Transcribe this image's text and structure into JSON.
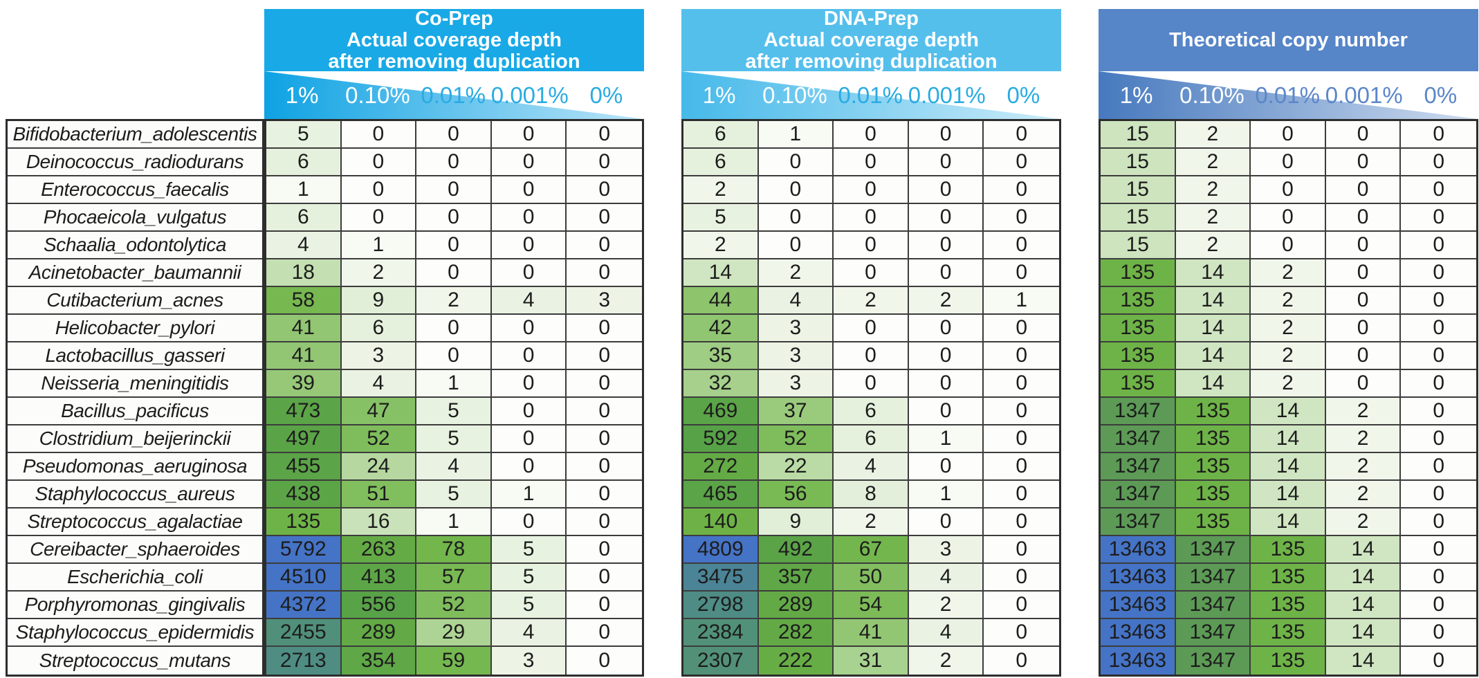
{
  "figure": {
    "description": "Coverage depth heatmap table comparing Co-Prep, DNA-Prep and theoretical copy number across serial dilutions"
  },
  "chart_data": {
    "type": "heatmap",
    "columns": [
      "1%",
      "0.10%",
      "0.01%",
      "0.001%",
      "0%"
    ],
    "panels": [
      {
        "values_key": "coprep",
        "title_lines": [
          "Co-Prep",
          "Actual coverage depth",
          "after removing duplication"
        ],
        "header_fill": "#19a9e6",
        "wedge_from": "#0ea2e3",
        "wedge_to": "#bce5f8",
        "pct_text_color": "#29abe2"
      },
      {
        "values_key": "dnaprep",
        "title_lines": [
          "DNA-Prep",
          "Actual coverage depth",
          "after removing duplication"
        ],
        "header_fill": "#55bfec",
        "wedge_from": "#45b9ea",
        "wedge_to": "#cdecf9",
        "pct_text_color": "#29abe2"
      },
      {
        "values_key": "theoretical",
        "title_lines": [
          "Theoretical copy number"
        ],
        "header_fill": "#5685c8",
        "wedge_from": "#4679be",
        "wedge_to": "#cfdcef",
        "pct_text_color": "#5b86c8"
      }
    ],
    "rows": [
      {
        "species": "Bifidobacterium_adolescentis",
        "coprep": [
          5,
          0,
          0,
          0,
          0
        ],
        "dnaprep": [
          6,
          1,
          0,
          0,
          0
        ],
        "theoretical": [
          15,
          2,
          0,
          0,
          0
        ]
      },
      {
        "species": "Deinococcus_radiodurans",
        "coprep": [
          6,
          0,
          0,
          0,
          0
        ],
        "dnaprep": [
          6,
          0,
          0,
          0,
          0
        ],
        "theoretical": [
          15,
          2,
          0,
          0,
          0
        ]
      },
      {
        "species": "Enterococcus_faecalis",
        "coprep": [
          1,
          0,
          0,
          0,
          0
        ],
        "dnaprep": [
          2,
          0,
          0,
          0,
          0
        ],
        "theoretical": [
          15,
          2,
          0,
          0,
          0
        ]
      },
      {
        "species": "Phocaeicola_vulgatus",
        "coprep": [
          6,
          0,
          0,
          0,
          0
        ],
        "dnaprep": [
          5,
          0,
          0,
          0,
          0
        ],
        "theoretical": [
          15,
          2,
          0,
          0,
          0
        ]
      },
      {
        "species": "Schaalia_odontolytica",
        "coprep": [
          4,
          1,
          0,
          0,
          0
        ],
        "dnaprep": [
          2,
          0,
          0,
          0,
          0
        ],
        "theoretical": [
          15,
          2,
          0,
          0,
          0
        ]
      },
      {
        "species": "Acinetobacter_baumannii",
        "coprep": [
          18,
          2,
          0,
          0,
          0
        ],
        "dnaprep": [
          14,
          2,
          0,
          0,
          0
        ],
        "theoretical": [
          135,
          14,
          2,
          0,
          0
        ]
      },
      {
        "species": "Cutibacterium_acnes",
        "coprep": [
          58,
          9,
          2,
          4,
          3
        ],
        "dnaprep": [
          44,
          4,
          2,
          2,
          1
        ],
        "theoretical": [
          135,
          14,
          2,
          0,
          0
        ]
      },
      {
        "species": "Helicobacter_pylori",
        "coprep": [
          41,
          6,
          0,
          0,
          0
        ],
        "dnaprep": [
          42,
          3,
          0,
          0,
          0
        ],
        "theoretical": [
          135,
          14,
          2,
          0,
          0
        ]
      },
      {
        "species": "Lactobacillus_gasseri",
        "coprep": [
          41,
          3,
          0,
          0,
          0
        ],
        "dnaprep": [
          35,
          3,
          0,
          0,
          0
        ],
        "theoretical": [
          135,
          14,
          2,
          0,
          0
        ]
      },
      {
        "species": "Neisseria_meningitidis",
        "coprep": [
          39,
          4,
          1,
          0,
          0
        ],
        "dnaprep": [
          32,
          3,
          0,
          0,
          0
        ],
        "theoretical": [
          135,
          14,
          2,
          0,
          0
        ]
      },
      {
        "species": "Bacillus_pacificus",
        "coprep": [
          473,
          47,
          5,
          0,
          0
        ],
        "dnaprep": [
          469,
          37,
          6,
          0,
          0
        ],
        "theoretical": [
          1347,
          135,
          14,
          2,
          0
        ]
      },
      {
        "species": "Clostridium_beijerinckii",
        "coprep": [
          497,
          52,
          5,
          0,
          0
        ],
        "dnaprep": [
          592,
          52,
          6,
          1,
          0
        ],
        "theoretical": [
          1347,
          135,
          14,
          2,
          0
        ]
      },
      {
        "species": "Pseudomonas_aeruginosa",
        "coprep": [
          455,
          24,
          4,
          0,
          0
        ],
        "dnaprep": [
          272,
          22,
          4,
          0,
          0
        ],
        "theoretical": [
          1347,
          135,
          14,
          2,
          0
        ]
      },
      {
        "species": "Staphylococcus_aureus",
        "coprep": [
          438,
          51,
          5,
          1,
          0
        ],
        "dnaprep": [
          465,
          56,
          8,
          1,
          0
        ],
        "theoretical": [
          1347,
          135,
          14,
          2,
          0
        ]
      },
      {
        "species": "Streptococcus_agalactiae",
        "coprep": [
          135,
          16,
          1,
          0,
          0
        ],
        "dnaprep": [
          140,
          9,
          2,
          0,
          0
        ],
        "theoretical": [
          1347,
          135,
          14,
          2,
          0
        ]
      },
      {
        "species": "Cereibacter_sphaeroides",
        "coprep": [
          5792,
          263,
          78,
          5,
          0
        ],
        "dnaprep": [
          4809,
          492,
          67,
          3,
          0
        ],
        "theoretical": [
          13463,
          1347,
          135,
          14,
          0
        ]
      },
      {
        "species": "Escherichia_coli",
        "coprep": [
          4510,
          413,
          57,
          5,
          0
        ],
        "dnaprep": [
          3475,
          357,
          50,
          4,
          0
        ],
        "theoretical": [
          13463,
          1347,
          135,
          14,
          0
        ]
      },
      {
        "species": "Porphyromonas_gingivalis",
        "coprep": [
          4372,
          556,
          52,
          5,
          0
        ],
        "dnaprep": [
          2798,
          289,
          54,
          2,
          0
        ],
        "theoretical": [
          13463,
          1347,
          135,
          14,
          0
        ]
      },
      {
        "species": "Staphylococcus_epidermidis",
        "coprep": [
          2455,
          289,
          29,
          4,
          0
        ],
        "dnaprep": [
          2384,
          282,
          41,
          4,
          0
        ],
        "theoretical": [
          13463,
          1347,
          135,
          14,
          0
        ]
      },
      {
        "species": "Streptococcus_mutans",
        "coprep": [
          2713,
          354,
          59,
          3,
          0
        ],
        "dnaprep": [
          2307,
          222,
          31,
          2,
          0
        ],
        "theoretical": [
          13463,
          1347,
          135,
          14,
          0
        ]
      }
    ],
    "color_scale": {
      "zero_color": "#fdfdfb",
      "scale": "log10",
      "stops": [
        [
          1,
          "#f8faf4"
        ],
        [
          10,
          "#e1eed7"
        ],
        [
          30,
          "#abd392"
        ],
        [
          60,
          "#74b74e"
        ],
        [
          150,
          "#6db246"
        ],
        [
          600,
          "#57a147"
        ],
        [
          1400,
          "#5c9a57"
        ],
        [
          2500,
          "#50907c"
        ],
        [
          3500,
          "#4b8497"
        ],
        [
          4200,
          "#4573c5"
        ],
        [
          20000,
          "#4573c5"
        ]
      ]
    },
    "layout": {
      "grid": "on",
      "border_color": "#2d2d2d",
      "pct_first_white_count": 2
    }
  }
}
